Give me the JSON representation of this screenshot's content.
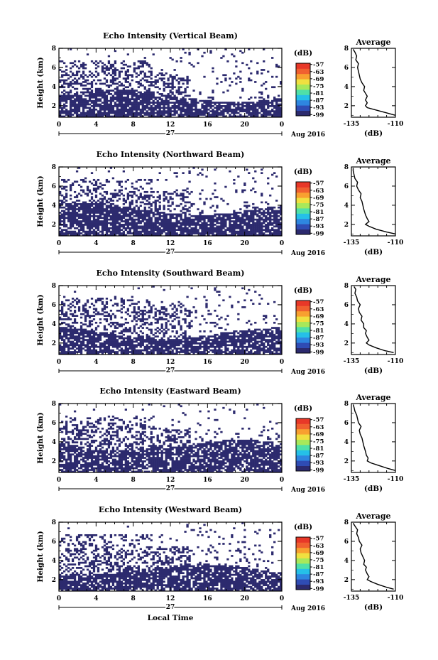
{
  "chart_data": [
    {
      "type": "heatmap",
      "title": "Echo Intensity (Vertical Beam)",
      "ylabel": "Height (km)",
      "xticks": [
        "0",
        "4",
        "8",
        "12",
        "16",
        "20",
        "0"
      ],
      "yticks": [
        "2",
        "4",
        "6",
        "8"
      ],
      "xlim": [
        0,
        24
      ],
      "ylim": [
        0.8,
        8.0
      ],
      "date_label": "27",
      "month_label": "Aug 2016",
      "colorbar": {
        "unit": "(dB)",
        "ticks": [
          "-57",
          "-63",
          "-69",
          "-75",
          "-81",
          "-87",
          "-93",
          "-99"
        ],
        "range": [
          -100,
          -56
        ]
      },
      "profile": {
        "title": "Average",
        "xlabel": "(dB)",
        "xticks": [
          "-135",
          "-110"
        ],
        "yticks": [
          "2",
          "4",
          "6",
          "8"
        ],
        "xlim": [
          -135,
          -110
        ],
        "ylim": [
          0.8,
          8.0
        ],
        "height": [
          1.0,
          1.2,
          1.5,
          1.8,
          2.0,
          2.3,
          2.6,
          3.0,
          3.3,
          3.6,
          4.0,
          4.4,
          4.8,
          5.2,
          5.6,
          6.0,
          6.4,
          6.8,
          7.2,
          7.6,
          7.9
        ],
        "db": [
          -110,
          -114,
          -120,
          -126,
          -127,
          -126,
          -127,
          -126,
          -127,
          -128,
          -127.5,
          -129,
          -130,
          -130.5,
          -131,
          -131.5,
          -131,
          -132.5,
          -132,
          -133,
          -134
        ]
      }
    },
    {
      "type": "heatmap",
      "title": "Echo Intensity (Northward Beam)",
      "ylabel": "Height (km)",
      "xticks": [
        "0",
        "4",
        "8",
        "12",
        "16",
        "20",
        "0"
      ],
      "yticks": [
        "2",
        "4",
        "6",
        "8"
      ],
      "xlim": [
        0,
        24
      ],
      "ylim": [
        0.8,
        8.0
      ],
      "date_label": "27",
      "month_label": "Aug 2016",
      "colorbar": {
        "unit": "(dB)",
        "ticks": [
          "-57",
          "-63",
          "-69",
          "-75",
          "-81",
          "-87",
          "-93",
          "-99"
        ],
        "range": [
          -100,
          -56
        ]
      },
      "profile": {
        "title": "Average",
        "xlabel": "(dB)",
        "xticks": [
          "-135",
          "-110"
        ],
        "yticks": [
          "2",
          "4",
          "6",
          "8"
        ],
        "xlim": [
          -135,
          -110
        ],
        "ylim": [
          0.8,
          8.0
        ],
        "height": [
          1.0,
          1.2,
          1.5,
          1.8,
          2.0,
          2.3,
          2.6,
          3.0,
          3.3,
          3.6,
          4.0,
          4.4,
          4.8,
          5.2,
          5.6,
          6.0,
          6.4,
          6.8,
          7.2,
          7.6,
          7.9
        ],
        "db": [
          -110,
          -115,
          -121,
          -125,
          -127,
          -125,
          -126,
          -127,
          -127.5,
          -128,
          -128.5,
          -129,
          -130,
          -129.5,
          -131,
          -132,
          -131.5,
          -133,
          -133.5,
          -134,
          -134
        ]
      }
    },
    {
      "type": "heatmap",
      "title": "Echo Intensity (Southward Beam)",
      "ylabel": "Height (km)",
      "xticks": [
        "0",
        "4",
        "8",
        "12",
        "16",
        "20",
        "0"
      ],
      "yticks": [
        "2",
        "4",
        "6",
        "8"
      ],
      "xlim": [
        0,
        24
      ],
      "ylim": [
        0.8,
        8.0
      ],
      "date_label": "27",
      "month_label": "Aug 2016",
      "colorbar": {
        "unit": "(dB)",
        "ticks": [
          "-57",
          "-63",
          "-69",
          "-75",
          "-81",
          "-87",
          "-93",
          "-99"
        ],
        "range": [
          -100,
          -56
        ]
      },
      "profile": {
        "title": "Average",
        "xlabel": "(dB)",
        "xticks": [
          "-135",
          "-110"
        ],
        "yticks": [
          "2",
          "4",
          "6",
          "8"
        ],
        "xlim": [
          -135,
          -110
        ],
        "ylim": [
          0.8,
          8.0
        ],
        "height": [
          1.0,
          1.2,
          1.5,
          1.8,
          2.0,
          2.3,
          2.6,
          3.0,
          3.3,
          3.6,
          4.0,
          4.4,
          4.8,
          5.2,
          5.6,
          6.0,
          6.4,
          6.8,
          7.2,
          7.6,
          7.9
        ],
        "db": [
          -111,
          -116,
          -121,
          -125,
          -126.5,
          -125,
          -126,
          -127,
          -126.5,
          -128,
          -128,
          -129.5,
          -129,
          -130.5,
          -131,
          -130,
          -131.5,
          -132,
          -133,
          -132.5,
          -133.5
        ]
      }
    },
    {
      "type": "heatmap",
      "title": "Echo Intensity (Eastward Beam)",
      "ylabel": "Height (km)",
      "xticks": [
        "0",
        "4",
        "8",
        "12",
        "16",
        "20",
        "0"
      ],
      "yticks": [
        "2",
        "4",
        "6",
        "8"
      ],
      "xlim": [
        0,
        24
      ],
      "ylim": [
        0.8,
        8.0
      ],
      "date_label": "27",
      "month_label": "Aug 2016",
      "colorbar": {
        "unit": "(dB)",
        "ticks": [
          "-57",
          "-63",
          "-69",
          "-75",
          "-81",
          "-87",
          "-93",
          "-99"
        ],
        "range": [
          -100,
          -56
        ]
      },
      "profile": {
        "title": "Average",
        "xlabel": "(dB)",
        "xticks": [
          "-135",
          "-110"
        ],
        "yticks": [
          "2",
          "4",
          "6",
          "8"
        ],
        "xlim": [
          -135,
          -110
        ],
        "ylim": [
          0.8,
          8.0
        ],
        "height": [
          1.0,
          1.2,
          1.5,
          1.8,
          2.0,
          2.3,
          2.6,
          3.0,
          3.3,
          3.6,
          4.0,
          4.4,
          4.8,
          5.2,
          5.6,
          6.0,
          6.4,
          6.8,
          7.2,
          7.6,
          7.9
        ],
        "db": [
          -110,
          -114,
          -119,
          -124,
          -126,
          -125.5,
          -126.5,
          -127,
          -127.5,
          -128,
          -128.5,
          -129,
          -130,
          -130.5,
          -129.5,
          -131,
          -131.5,
          -132,
          -133,
          -133.5,
          -134
        ]
      }
    },
    {
      "type": "heatmap",
      "title": "Echo Intensity (Westward Beam)",
      "ylabel": "Height (km)",
      "xlabel": "Local Time",
      "xticks": [
        "0",
        "4",
        "8",
        "12",
        "16",
        "20",
        "0"
      ],
      "yticks": [
        "2",
        "4",
        "6",
        "8"
      ],
      "xlim": [
        0,
        24
      ],
      "ylim": [
        0.8,
        8.0
      ],
      "date_label": "27",
      "month_label": "Aug 2016",
      "colorbar": {
        "unit": "(dB)",
        "ticks": [
          "-57",
          "-63",
          "-69",
          "-75",
          "-81",
          "-87",
          "-93",
          "-99"
        ],
        "range": [
          -100,
          -56
        ]
      },
      "profile": {
        "title": "Average",
        "xlabel": "(dB)",
        "xticks": [
          "-135",
          "-110"
        ],
        "yticks": [
          "2",
          "4",
          "6",
          "8"
        ],
        "xlim": [
          -135,
          -110
        ],
        "ylim": [
          0.8,
          8.0
        ],
        "height": [
          1.0,
          1.2,
          1.5,
          1.8,
          2.0,
          2.3,
          2.6,
          3.0,
          3.3,
          3.6,
          4.0,
          4.4,
          4.8,
          5.2,
          5.6,
          6.0,
          6.4,
          6.8,
          7.2,
          7.6,
          7.9
        ],
        "db": [
          -111,
          -115,
          -120,
          -124,
          -126,
          -125,
          -126,
          -127,
          -126.5,
          -128,
          -127.5,
          -128.5,
          -129.5,
          -130,
          -129,
          -130.5,
          -131,
          -132,
          -131.5,
          -133,
          -134
        ]
      }
    }
  ]
}
